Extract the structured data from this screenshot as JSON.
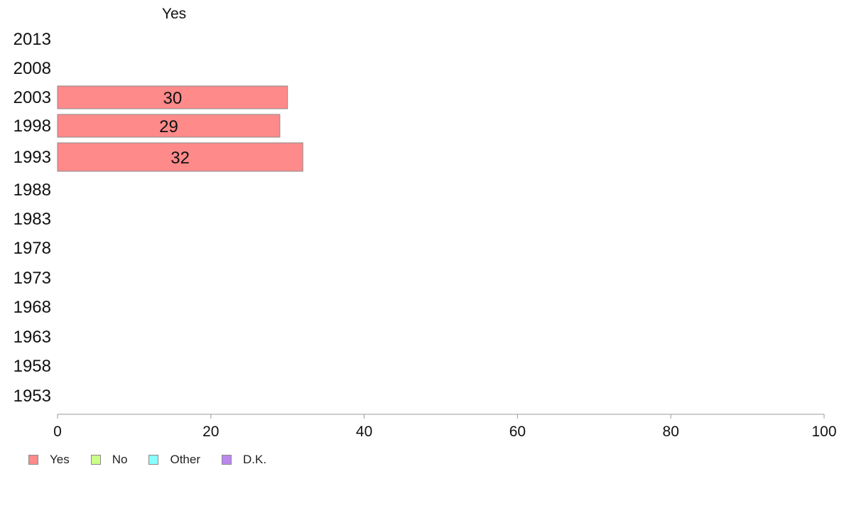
{
  "chart_data": {
    "type": "bar",
    "orientation": "horizontal",
    "title": "Yes",
    "categories": [
      "2013",
      "2008",
      "2003",
      "1998",
      "1993",
      "1988",
      "1983",
      "1978",
      "1973",
      "1968",
      "1963",
      "1958",
      "1953"
    ],
    "series": [
      {
        "name": "Yes",
        "color": "#ff8a8a",
        "values": [
          null,
          null,
          30,
          29,
          32,
          null,
          null,
          null,
          null,
          null,
          null,
          null,
          null
        ]
      }
    ],
    "xlim": [
      0,
      100
    ],
    "xticks": [
      0,
      20,
      40,
      60,
      80,
      100
    ],
    "grid": false,
    "legend_position": "bottom-left"
  },
  "legend": {
    "items": [
      {
        "label": "Yes",
        "color": "#ff8a8a"
      },
      {
        "label": "No",
        "color": "#ccff88"
      },
      {
        "label": "Other",
        "color": "#88ffff"
      },
      {
        "label": "D.K.",
        "color": "#bb88ee"
      }
    ]
  }
}
